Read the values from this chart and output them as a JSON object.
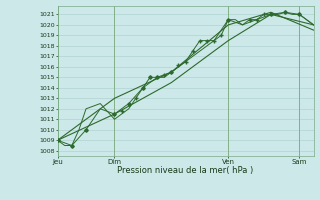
{
  "bg_color": "#cce8e8",
  "grid_color": "#aacccc",
  "line_color": "#2d6a2d",
  "xlabel": "Pression niveau de la mer( hPa )",
  "ylim": [
    1007.5,
    1021.8
  ],
  "xlim": [
    0,
    216
  ],
  "yticks": [
    1008,
    1009,
    1010,
    1011,
    1012,
    1013,
    1014,
    1015,
    1016,
    1017,
    1018,
    1019,
    1020,
    1021
  ],
  "day_labels": [
    "Jeu",
    "Dim",
    "Ven",
    "Sam"
  ],
  "day_positions": [
    0,
    48,
    144,
    204
  ],
  "series1_x": [
    0,
    6,
    12,
    18,
    24,
    36,
    48,
    54,
    60,
    66,
    72,
    78,
    84,
    90,
    96,
    102,
    108,
    114,
    120,
    126,
    132,
    138,
    144,
    150,
    156,
    162,
    168,
    174,
    180,
    186,
    192,
    198,
    204,
    210,
    216
  ],
  "series1_y": [
    1009.0,
    1008.5,
    1008.5,
    1010.0,
    1012.0,
    1012.5,
    1011.0,
    1011.5,
    1012.0,
    1013.0,
    1014.0,
    1015.0,
    1015.0,
    1015.0,
    1015.5,
    1016.0,
    1016.5,
    1017.5,
    1018.5,
    1018.5,
    1018.5,
    1019.0,
    1020.5,
    1020.5,
    1020.0,
    1020.5,
    1020.5,
    1021.0,
    1021.0,
    1021.0,
    1021.2,
    1021.0,
    1021.0,
    1020.5,
    1020.0
  ],
  "series2_x": [
    0,
    12,
    24,
    36,
    48,
    60,
    72,
    84,
    96,
    108,
    120,
    132,
    144,
    156,
    168,
    180,
    192,
    204,
    216
  ],
  "series2_y": [
    1009.0,
    1008.5,
    1010.0,
    1012.0,
    1011.5,
    1012.5,
    1014.0,
    1015.0,
    1015.5,
    1016.5,
    1017.5,
    1018.5,
    1020.5,
    1020.0,
    1020.5,
    1021.0,
    1021.2,
    1021.0,
    1020.0
  ],
  "series3_x": [
    0,
    48,
    96,
    144,
    180,
    216
  ],
  "series3_y": [
    1009.0,
    1011.5,
    1014.5,
    1018.5,
    1021.0,
    1020.0
  ],
  "series4_x": [
    0,
    48,
    96,
    144,
    180,
    216
  ],
  "series4_y": [
    1009.0,
    1013.0,
    1015.5,
    1020.0,
    1021.2,
    1019.5
  ],
  "markers1_x": [
    0,
    12,
    24,
    48,
    60,
    72,
    78,
    84,
    96,
    144,
    180,
    192,
    204
  ],
  "markers1_y": [
    1009.0,
    1008.5,
    1010.0,
    1011.5,
    1012.5,
    1014.0,
    1015.0,
    1015.0,
    1015.5,
    1020.5,
    1021.0,
    1021.2,
    1021.0
  ],
  "markers2_x": [
    54,
    66,
    90,
    102,
    108,
    114,
    120,
    126,
    132,
    138,
    162,
    168,
    174
  ],
  "markers2_y": [
    1011.8,
    1013.0,
    1015.2,
    1016.2,
    1016.5,
    1017.5,
    1018.5,
    1018.5,
    1018.5,
    1019.0,
    1020.5,
    1020.5,
    1021.0
  ]
}
